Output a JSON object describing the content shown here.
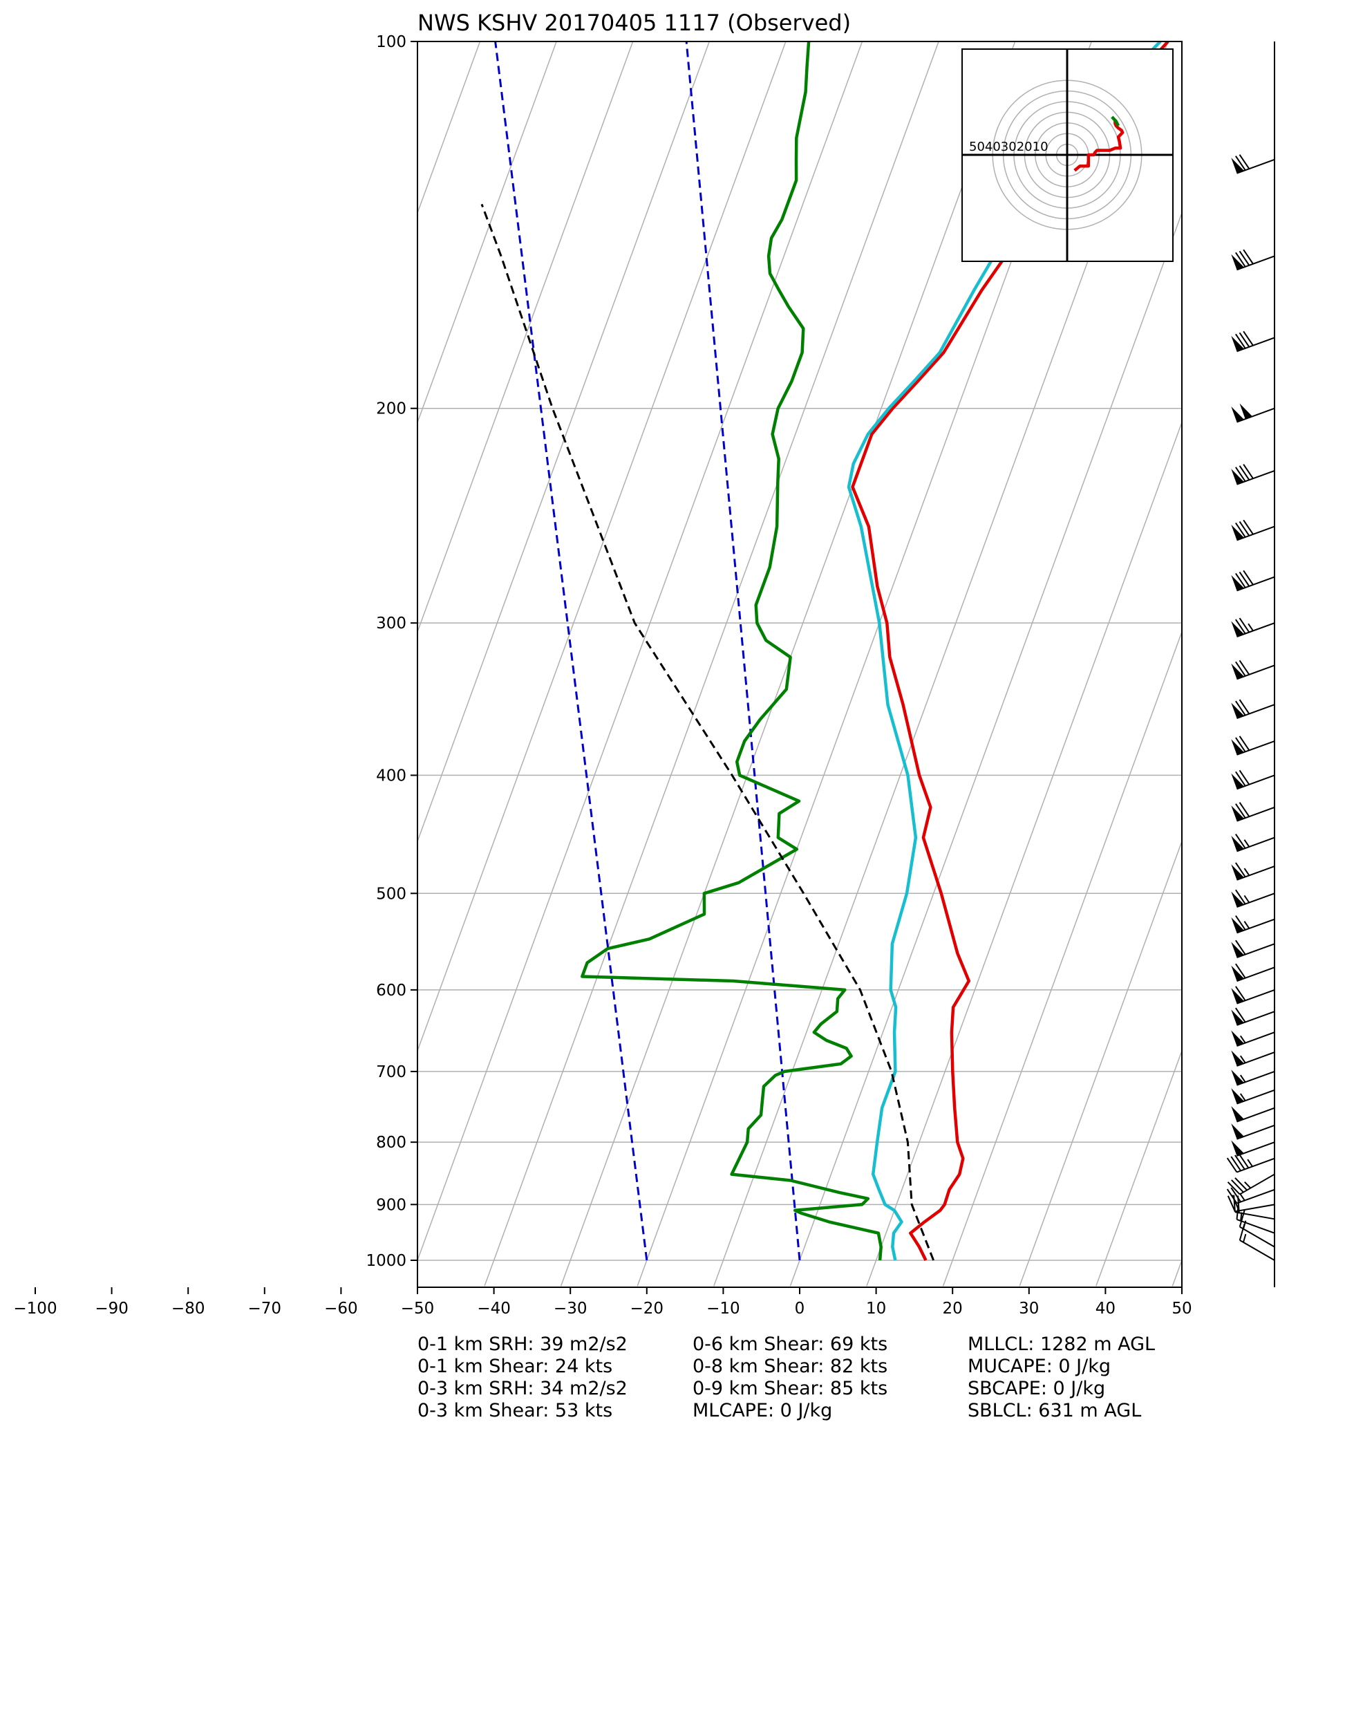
{
  "title": "NWS KSHV 20170405 1117   (Observed)",
  "chart_data": {
    "type": "line",
    "subtype": "skew-T log-P sounding",
    "xlabel": "",
    "ylabel": "",
    "x_ticks": [
      -100,
      -90,
      -80,
      -70,
      -60,
      -50,
      -40,
      -30,
      -20,
      -10,
      0,
      10,
      20,
      30,
      40,
      50
    ],
    "p_ticks": [
      100,
      200,
      300,
      400,
      500,
      600,
      700,
      800,
      900,
      1000
    ],
    "xlim": [
      -50,
      50
    ],
    "plim": [
      1050,
      100
    ],
    "grid": true,
    "series": [
      {
        "color": "#e00000",
        "points": [
          [
            1000,
            16.5
          ],
          [
            975,
            15
          ],
          [
            950,
            13.2
          ],
          [
            930,
            14.5
          ],
          [
            910,
            16
          ],
          [
            900,
            16.3
          ],
          [
            875,
            16.2
          ],
          [
            850,
            16.8
          ],
          [
            825,
            16.5
          ],
          [
            800,
            15
          ],
          [
            750,
            13
          ],
          [
            700,
            11
          ],
          [
            650,
            9
          ],
          [
            620,
            8
          ],
          [
            590,
            8.8
          ],
          [
            560,
            6
          ],
          [
            500,
            1
          ],
          [
            450,
            -4
          ],
          [
            425,
            -4.5
          ],
          [
            400,
            -7.5
          ],
          [
            350,
            -13
          ],
          [
            320,
            -17
          ],
          [
            300,
            -19
          ],
          [
            280,
            -22
          ],
          [
            250,
            -26
          ],
          [
            232,
            -30
          ],
          [
            222,
            -30
          ],
          [
            210,
            -30
          ],
          [
            200,
            -28.5
          ],
          [
            190,
            -26.5
          ],
          [
            180,
            -24.5
          ],
          [
            160,
            -22.5
          ],
          [
            150,
            -21
          ],
          [
            145,
            -21
          ],
          [
            140,
            -19
          ],
          [
            130,
            -18
          ],
          [
            120,
            -16.5
          ],
          [
            110,
            -13.5
          ],
          [
            100,
            -10
          ]
        ]
      },
      {
        "color": "#17becf",
        "points": [
          [
            1000,
            12.5
          ],
          [
            975,
            11.5
          ],
          [
            950,
            11
          ],
          [
            930,
            11.5
          ],
          [
            910,
            10
          ],
          [
            900,
            8.5
          ],
          [
            875,
            7
          ],
          [
            850,
            5.5
          ],
          [
            800,
            4.5
          ],
          [
            750,
            3.5
          ],
          [
            700,
            3.5
          ],
          [
            650,
            1.5
          ],
          [
            620,
            0.5
          ],
          [
            600,
            -1
          ],
          [
            550,
            -3
          ],
          [
            500,
            -3.5
          ],
          [
            450,
            -5
          ],
          [
            400,
            -9
          ],
          [
            350,
            -15
          ],
          [
            300,
            -20
          ],
          [
            250,
            -27
          ],
          [
            232,
            -30.5
          ],
          [
            222,
            -31
          ],
          [
            210,
            -30.5
          ],
          [
            200,
            -29
          ],
          [
            190,
            -27
          ],
          [
            180,
            -25
          ],
          [
            160,
            -23.5
          ],
          [
            150,
            -22.5
          ],
          [
            140,
            -20
          ],
          [
            130,
            -19.5
          ],
          [
            120,
            -18
          ],
          [
            110,
            -15
          ],
          [
            100,
            -11
          ]
        ]
      },
      {
        "color": "#008000",
        "points": [
          [
            1000,
            10.5
          ],
          [
            975,
            10
          ],
          [
            950,
            9
          ],
          [
            930,
            2
          ],
          [
            915,
            -2
          ],
          [
            910,
            -3
          ],
          [
            900,
            5.5
          ],
          [
            890,
            6
          ],
          [
            880,
            2
          ],
          [
            860,
            -5
          ],
          [
            850,
            -13
          ],
          [
            800,
            -12.5
          ],
          [
            780,
            -13
          ],
          [
            760,
            -12
          ],
          [
            740,
            -12.5
          ],
          [
            720,
            -13
          ],
          [
            705,
            -12
          ],
          [
            700,
            -11
          ],
          [
            690,
            -4
          ],
          [
            680,
            -3
          ],
          [
            670,
            -4
          ],
          [
            660,
            -7
          ],
          [
            650,
            -9
          ],
          [
            640,
            -8.5
          ],
          [
            625,
            -7
          ],
          [
            610,
            -7.5
          ],
          [
            600,
            -7
          ],
          [
            590,
            -22
          ],
          [
            585,
            -42
          ],
          [
            570,
            -42
          ],
          [
            555,
            -40
          ],
          [
            545,
            -35
          ],
          [
            520,
            -29
          ],
          [
            500,
            -30
          ],
          [
            490,
            -26
          ],
          [
            460,
            -20
          ],
          [
            450,
            -23
          ],
          [
            430,
            -24
          ],
          [
            420,
            -22
          ],
          [
            400,
            -31
          ],
          [
            390,
            -32
          ],
          [
            375,
            -32
          ],
          [
            360,
            -31
          ],
          [
            340,
            -29
          ],
          [
            320,
            -30
          ],
          [
            310,
            -34
          ],
          [
            300,
            -36
          ],
          [
            290,
            -37
          ],
          [
            270,
            -37
          ],
          [
            250,
            -38
          ],
          [
            230,
            -40
          ],
          [
            220,
            -41
          ],
          [
            210,
            -43
          ],
          [
            200,
            -43.5
          ],
          [
            190,
            -43
          ],
          [
            180,
            -43
          ],
          [
            172,
            -44
          ],
          [
            165,
            -47
          ],
          [
            160,
            -49
          ],
          [
            155,
            -51
          ],
          [
            150,
            -52
          ],
          [
            145,
            -52.5
          ],
          [
            140,
            -52
          ],
          [
            135,
            -52
          ],
          [
            130,
            -52
          ],
          [
            125,
            -53
          ],
          [
            120,
            -54
          ],
          [
            110,
            -55
          ],
          [
            105,
            -56
          ],
          [
            100,
            -57
          ]
        ]
      },
      {
        "color": "#000000",
        "style": "dashed",
        "points": [
          [
            1000,
            17.5
          ],
          [
            900,
            12
          ],
          [
            800,
            8.5
          ],
          [
            700,
            3
          ],
          [
            600,
            -5
          ],
          [
            500,
            -17
          ],
          [
            400,
            -32
          ],
          [
            300,
            -52
          ],
          [
            200,
            -73
          ],
          [
            150,
            -87
          ],
          [
            136,
            -92
          ]
        ]
      }
    ],
    "mixing_ratio_lines": [
      {
        "color": "#0000cc",
        "style": "dashed",
        "t_at_1000": 0,
        "t_at_100": -73
      },
      {
        "color": "#0000cc",
        "style": "dashed",
        "t_at_1000": -20,
        "t_at_100": -98
      }
    ],
    "wind_barbs": [
      {
        "p": 1000,
        "dir": 300,
        "spd": 15
      },
      {
        "p": 975,
        "dir": 300,
        "spd": 15
      },
      {
        "p": 950,
        "dir": 290,
        "spd": 15
      },
      {
        "p": 925,
        "dir": 280,
        "spd": 20
      },
      {
        "p": 900,
        "dir": 260,
        "spd": 20
      },
      {
        "p": 875,
        "dir": 250,
        "spd": 25
      },
      {
        "p": 850,
        "dir": 240,
        "spd": 35
      },
      {
        "p": 825,
        "dir": 250,
        "spd": 45
      },
      {
        "p": 800,
        "dir": 250,
        "spd": 50
      },
      {
        "p": 775,
        "dir": 250,
        "spd": 50
      },
      {
        "p": 750,
        "dir": 250,
        "spd": 50
      },
      {
        "p": 725,
        "dir": 250,
        "spd": 55
      },
      {
        "p": 700,
        "dir": 250,
        "spd": 55
      },
      {
        "p": 675,
        "dir": 250,
        "spd": 55
      },
      {
        "p": 650,
        "dir": 250,
        "spd": 55
      },
      {
        "p": 625,
        "dir": 250,
        "spd": 60
      },
      {
        "p": 600,
        "dir": 250,
        "spd": 60
      },
      {
        "p": 575,
        "dir": 250,
        "spd": 60
      },
      {
        "p": 550,
        "dir": 250,
        "spd": 60
      },
      {
        "p": 525,
        "dir": 250,
        "spd": 65
      },
      {
        "p": 500,
        "dir": 250,
        "spd": 65
      },
      {
        "p": 475,
        "dir": 250,
        "spd": 65
      },
      {
        "p": 450,
        "dir": 250,
        "spd": 65
      },
      {
        "p": 425,
        "dir": 250,
        "spd": 70
      },
      {
        "p": 400,
        "dir": 250,
        "spd": 70
      },
      {
        "p": 375,
        "dir": 250,
        "spd": 70
      },
      {
        "p": 350,
        "dir": 250,
        "spd": 70
      },
      {
        "p": 325,
        "dir": 250,
        "spd": 70
      },
      {
        "p": 300,
        "dir": 250,
        "spd": 75
      },
      {
        "p": 275,
        "dir": 250,
        "spd": 80
      },
      {
        "p": 250,
        "dir": 250,
        "spd": 80
      },
      {
        "p": 225,
        "dir": 250,
        "spd": 80
      },
      {
        "p": 200,
        "dir": 250,
        "spd": 100
      },
      {
        "p": 175,
        "dir": 250,
        "spd": 80
      },
      {
        "p": 150,
        "dir": 250,
        "spd": 80
      },
      {
        "p": 125,
        "dir": 250,
        "spd": 70
      }
    ],
    "hodograph": {
      "ring_labels": [
        "50",
        "40",
        "30",
        "20",
        "10"
      ],
      "rings": [
        10,
        20,
        30,
        40,
        50,
        60,
        70
      ],
      "range": 50,
      "series": [
        {
          "color": "#e00000",
          "points": [
            [
              7,
              -7
            ],
            [
              12,
              -5
            ],
            [
              20,
              -5
            ],
            [
              20,
              -1
            ],
            [
              20,
              0
            ],
            [
              25,
              0
            ],
            [
              26,
              1
            ],
            [
              28,
              2
            ],
            [
              35,
              2
            ],
            [
              40,
              2
            ],
            [
              45,
              3
            ],
            [
              48,
              3
            ],
            [
              50,
              3
            ],
            [
              49,
              6
            ],
            [
              48,
              8
            ],
            [
              50,
              9
            ],
            [
              52,
              10
            ],
            [
              51,
              11
            ],
            [
              48,
              12
            ],
            [
              46,
              13
            ],
            [
              45,
              14
            ],
            [
              45,
              15
            ],
            [
              47,
              14
            ]
          ]
        },
        {
          "color": "#008000",
          "points": [
            [
              48,
              13
            ],
            [
              46,
              15
            ],
            [
              44,
              16
            ],
            [
              42,
              17
            ]
          ]
        }
      ]
    },
    "indices": [
      [
        "0-1 km SRH: 39 m2/s2",
        "0-1 km Shear: 24 kts",
        "0-3 km SRH: 34 m2/s2",
        "0-3 km Shear: 53 kts"
      ],
      [
        "0-6 km Shear: 69 kts",
        "0-8 km Shear: 82 kts",
        "0-9 km Shear: 85 kts",
        "MLCAPE: 0 J/kg"
      ],
      [
        "MLLCL: 1282 m AGL",
        "MUCAPE: 0 J/kg",
        "SBCAPE: 0 J/kg",
        "SBLCL: 631 m AGL"
      ]
    ]
  }
}
